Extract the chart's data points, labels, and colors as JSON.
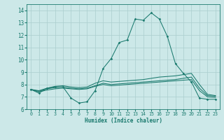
{
  "xlabel": "Humidex (Indice chaleur)",
  "xlim": [
    -0.5,
    23.5
  ],
  "ylim": [
    6,
    14.5
  ],
  "yticks": [
    6,
    7,
    8,
    9,
    10,
    11,
    12,
    13,
    14
  ],
  "xticks": [
    0,
    1,
    2,
    3,
    4,
    5,
    6,
    7,
    8,
    9,
    10,
    11,
    12,
    13,
    14,
    15,
    16,
    17,
    18,
    19,
    20,
    21,
    22,
    23
  ],
  "bg_color": "#cce8e8",
  "line_color": "#1a7a6e",
  "grid_color": "#aacece",
  "main_line": [
    7.6,
    7.3,
    7.7,
    7.8,
    7.8,
    6.9,
    6.5,
    6.6,
    7.5,
    9.3,
    10.1,
    11.4,
    11.6,
    13.3,
    13.2,
    13.8,
    13.3,
    11.9,
    9.7,
    8.9,
    8.2,
    6.9,
    6.8,
    6.8
  ],
  "flat_lines": [
    [
      7.6,
      7.4,
      7.55,
      7.65,
      7.7,
      7.65,
      7.6,
      7.65,
      7.85,
      8.0,
      7.9,
      7.95,
      8.0,
      8.05,
      8.1,
      8.15,
      8.2,
      8.25,
      8.3,
      8.35,
      8.4,
      7.5,
      7.0,
      6.95
    ],
    [
      7.6,
      7.45,
      7.65,
      7.75,
      7.8,
      7.7,
      7.65,
      7.7,
      7.9,
      8.1,
      8.0,
      8.05,
      8.1,
      8.15,
      8.2,
      8.25,
      8.3,
      8.35,
      8.4,
      8.5,
      8.6,
      7.7,
      7.1,
      7.05
    ],
    [
      7.6,
      7.5,
      7.7,
      7.85,
      7.9,
      7.8,
      7.75,
      7.8,
      8.1,
      8.3,
      8.2,
      8.25,
      8.3,
      8.35,
      8.4,
      8.5,
      8.6,
      8.65,
      8.7,
      8.8,
      8.9,
      8.0,
      7.2,
      7.1
    ]
  ]
}
